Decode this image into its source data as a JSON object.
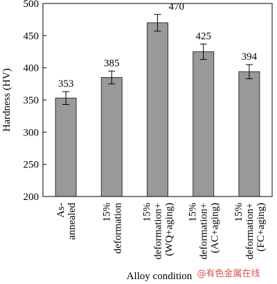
{
  "chart_data": {
    "type": "bar",
    "categories": [
      "As-\nannealed",
      "15%\ndeformation",
      "15%\ndeformation+\n(WQ+aging)",
      "15%\ndeformation+\n(AC+aging)",
      "15%\ndeformation+\n(FC+aging)"
    ],
    "values": [
      353,
      385,
      470,
      425,
      394
    ],
    "errors": [
      10,
      10,
      13,
      12,
      11
    ],
    "color": "#999999",
    "ylim": [
      200,
      500
    ],
    "yticks": [
      200,
      250,
      300,
      350,
      400,
      450,
      500
    ],
    "y_label": "Hardness (HV)",
    "x_label": "Alloy condition",
    "watermark": "@有色金属在线"
  }
}
